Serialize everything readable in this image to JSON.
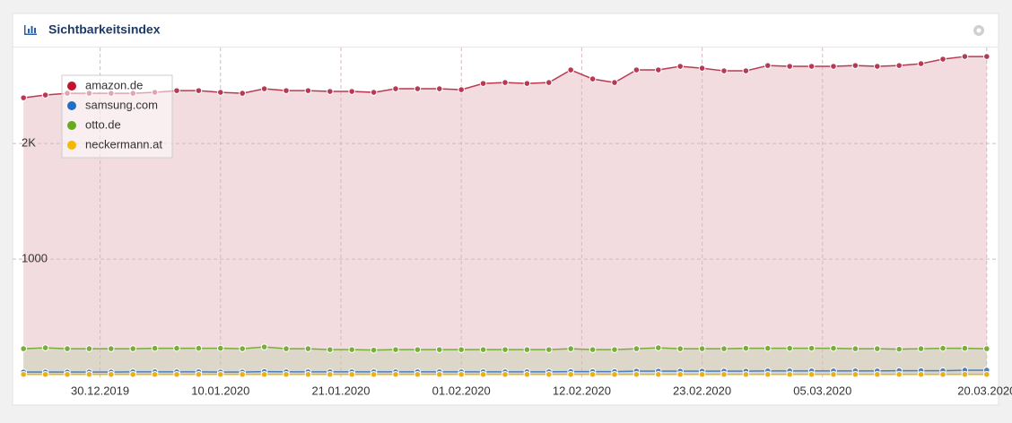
{
  "header": {
    "title": "Sichtbarkeitsindex"
  },
  "chart_data": {
    "type": "area",
    "grid": true,
    "legend": "upper left",
    "x": [
      "23.12.2019",
      "25.12.2019",
      "27.12.2019",
      "29.12.2019",
      "31.12.2019",
      "02.01.2020",
      "04.01.2020",
      "06.01.2020",
      "08.01.2020",
      "10.01.2020",
      "12.01.2020",
      "14.01.2020",
      "16.01.2020",
      "18.01.2020",
      "20.01.2020",
      "22.01.2020",
      "24.01.2020",
      "26.01.2020",
      "28.01.2020",
      "30.01.2020",
      "01.02.2020",
      "03.02.2020",
      "05.02.2020",
      "07.02.2020",
      "09.02.2020",
      "11.02.2020",
      "13.02.2020",
      "15.02.2020",
      "17.02.2020",
      "19.02.2020",
      "21.02.2020",
      "23.02.2020",
      "25.02.2020",
      "27.02.2020",
      "29.02.2020",
      "02.03.2020",
      "04.03.2020",
      "06.03.2020",
      "08.03.2020",
      "10.03.2020",
      "12.03.2020",
      "14.03.2020",
      "16.03.2020",
      "18.03.2020",
      "20.03.2020"
    ],
    "xlim": [
      "22.12.2019",
      "21.03.2020"
    ],
    "xticks": [
      "30.12.2019",
      "10.01.2020",
      "21.01.2020",
      "01.02.2020",
      "12.02.2020",
      "23.02.2020",
      "05.03.2020",
      "20.03.2020"
    ],
    "ylim": [
      -30,
      2830
    ],
    "yticks": [
      1000,
      {
        "value": 2000,
        "label": "2K"
      }
    ],
    "series": [
      {
        "name": "amazon.de",
        "color": "#c8102e",
        "line": "#b83a52",
        "fill": "#f2dcdf",
        "values": [
          2395,
          2419,
          2434,
          2434,
          2434,
          2434,
          2442,
          2457,
          2457,
          2442,
          2434,
          2473,
          2457,
          2457,
          2450,
          2450,
          2442,
          2473,
          2473,
          2473,
          2465,
          2519,
          2527,
          2519,
          2527,
          2636,
          2558,
          2527,
          2636,
          2636,
          2667,
          2651,
          2628,
          2628,
          2674,
          2667,
          2667,
          2667,
          2674,
          2667,
          2674,
          2690,
          2729,
          2752,
          2752
        ]
      },
      {
        "name": "samsung.com",
        "color": "#1f6fc5",
        "line": "#4a7fc0",
        "fill": "#c8cfe0",
        "values": [
          23,
          23,
          23,
          23,
          23,
          25,
          25,
          25,
          25,
          23,
          23,
          27,
          25,
          25,
          25,
          25,
          25,
          25,
          25,
          25,
          25,
          25,
          25,
          25,
          25,
          27,
          27,
          27,
          31,
          31,
          31,
          31,
          31,
          31,
          33,
          33,
          33,
          33,
          33,
          33,
          35,
          35,
          35,
          39,
          39
        ]
      },
      {
        "name": "otto.de",
        "color": "#6aaa1e",
        "line": "#7aad3c",
        "fill": "#d9d6c6",
        "values": [
          225,
          233,
          225,
          225,
          225,
          225,
          229,
          229,
          229,
          229,
          225,
          240,
          225,
          225,
          217,
          217,
          213,
          217,
          217,
          217,
          217,
          217,
          217,
          217,
          217,
          225,
          217,
          217,
          225,
          233,
          225,
          225,
          225,
          229,
          229,
          229,
          229,
          229,
          225,
          225,
          221,
          225,
          229,
          229,
          225
        ]
      },
      {
        "name": "neckermann.at",
        "color": "#f5b800",
        "line": "#e9b01a",
        "fill": "#f0dca8",
        "values": [
          3,
          3,
          3,
          3,
          3,
          3,
          3,
          3,
          3,
          3,
          3,
          3,
          3,
          3,
          3,
          3,
          3,
          3,
          3,
          3,
          3,
          3,
          3,
          3,
          3,
          3,
          3,
          3,
          3,
          3,
          3,
          3,
          3,
          3,
          3,
          3,
          3,
          3,
          3,
          3,
          3,
          3,
          3,
          3,
          3
        ]
      }
    ]
  }
}
